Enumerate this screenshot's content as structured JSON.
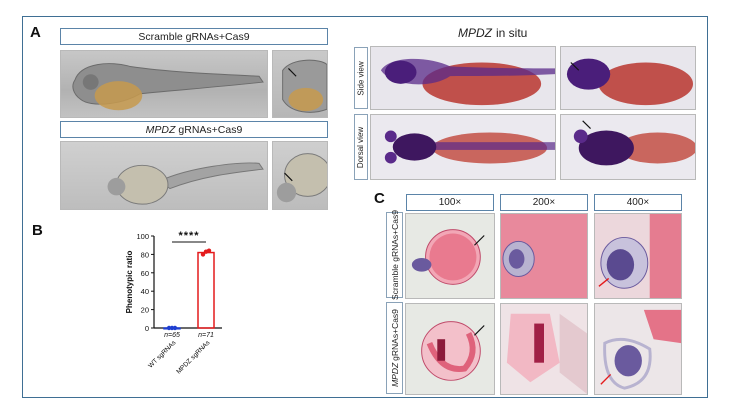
{
  "panels": {
    "a": "A",
    "b": "B",
    "c": "C"
  },
  "panel_a": {
    "scramble_label": "Scramble gRNAs+Cas9",
    "mpdz_gene": "MPDZ",
    "mpdz_suffix": "gRNAs+Cas9"
  },
  "insitu": {
    "gene": "MPDZ",
    "title_suffix": "in situ",
    "side_view": "Side view",
    "dorsal_view": "Dorsal view"
  },
  "panel_c": {
    "mags": [
      "100×",
      "200×",
      "400×"
    ],
    "row1_label": "Scramble gRNAs+Cas9",
    "row2_gene": "MPDZ",
    "row2_suffix": "gRNAs+Cas9"
  },
  "colors": {
    "frame": "#3f6f94",
    "wt_series": "#1f3fd1",
    "mpdz_series": "#e41a1c",
    "stain": "#5a2a8a",
    "yolk": "#b8352f"
  },
  "chart_data": {
    "type": "bar",
    "ylabel": "Phenotypic ratio",
    "ylim": [
      0,
      100
    ],
    "yticks": [
      "0",
      "20",
      "40",
      "60",
      "80",
      "100"
    ],
    "categories": [
      "WT sgRNAs",
      "MPDZ sgRNAs"
    ],
    "values": [
      0,
      82
    ],
    "n_labels": [
      "n=65",
      "n=71"
    ],
    "significance": "****",
    "points": [
      [
        0,
        0,
        0
      ],
      [
        80,
        83,
        84
      ]
    ]
  }
}
